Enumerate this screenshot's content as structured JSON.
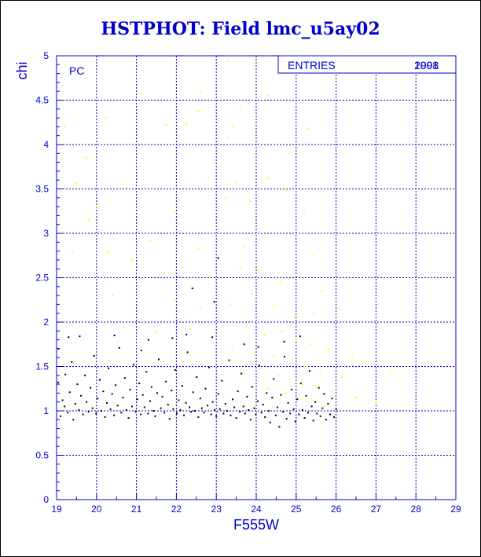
{
  "chart_data": {
    "type": "scatter",
    "title": "HSTPHOT: Field lmc_u5ay02",
    "xlabel": "F555W",
    "ylabel": "chi",
    "xlim": [
      19,
      29
    ],
    "ylim": [
      0,
      5
    ],
    "x_ticks": [
      "19",
      "20",
      "21",
      "22",
      "23",
      "24",
      "25",
      "26",
      "27",
      "28",
      "29"
    ],
    "y_ticks": [
      "0",
      "0.5",
      "1",
      "1.5",
      "2",
      "2.5",
      "3",
      "3.5",
      "4",
      "4.5",
      "5"
    ],
    "grid": true,
    "panel_label": "PC",
    "stats_box": {
      "label": "ENTRIES",
      "values": [
        "2098",
        "1901"
      ]
    },
    "colors": {
      "frame": "#0000cc",
      "title": "#0000cc",
      "points_good": "#000000",
      "points_flagged": "#ffff00"
    },
    "series": [
      {
        "color_key": "points_good",
        "points": [
          [
            19.04,
            1.32
          ],
          [
            19.1,
            0.94
          ],
          [
            19.15,
            1.12
          ],
          [
            19.2,
            1.05
          ],
          [
            19.22,
            1.41
          ],
          [
            19.28,
            0.98
          ],
          [
            19.33,
            1.21
          ],
          [
            19.38,
            1.55
          ],
          [
            19.42,
            0.9
          ],
          [
            19.47,
            1.08
          ],
          [
            19.52,
            1.3
          ],
          [
            19.56,
            1.01
          ],
          [
            19.61,
            1.17
          ],
          [
            19.66,
            0.96
          ],
          [
            19.71,
            1.4
          ],
          [
            19.75,
            1.1
          ],
          [
            19.8,
            0.99
          ],
          [
            19.85,
            1.26
          ],
          [
            19.9,
            1.03
          ],
          [
            19.94,
            1.62
          ],
          [
            19.99,
            0.97
          ],
          [
            20.03,
            1.14
          ],
          [
            20.08,
            1.35
          ],
          [
            20.12,
            1.0
          ],
          [
            20.17,
            1.22
          ],
          [
            20.21,
            0.93
          ],
          [
            20.26,
            1.09
          ],
          [
            20.3,
            1.48
          ],
          [
            20.35,
            1.02
          ],
          [
            20.39,
            1.19
          ],
          [
            20.44,
            0.95
          ],
          [
            20.48,
            1.29
          ],
          [
            20.53,
            1.06
          ],
          [
            20.57,
            1.71
          ],
          [
            20.62,
            0.98
          ],
          [
            20.66,
            1.15
          ],
          [
            20.71,
            1.37
          ],
          [
            20.75,
            1.01
          ],
          [
            20.8,
            0.92
          ],
          [
            20.84,
            1.24
          ],
          [
            20.89,
            1.05
          ],
          [
            20.93,
            1.52
          ],
          [
            20.98,
            0.99
          ],
          [
            21.02,
            1.13
          ],
          [
            21.07,
            1.31
          ],
          [
            21.11,
            0.96
          ],
          [
            21.16,
            1.18
          ],
          [
            21.2,
            1.04
          ],
          [
            21.25,
            1.44
          ],
          [
            21.29,
            0.97
          ],
          [
            21.34,
            1.11
          ],
          [
            21.38,
            1.27
          ],
          [
            21.43,
            1.0
          ],
          [
            21.47,
            0.94
          ],
          [
            21.52,
            1.2
          ],
          [
            21.56,
            1.58
          ],
          [
            21.61,
            1.03
          ],
          [
            21.65,
            1.16
          ],
          [
            21.7,
            0.98
          ],
          [
            21.74,
            1.33
          ],
          [
            21.79,
            1.07
          ],
          [
            21.83,
            0.91
          ],
          [
            21.88,
            1.23
          ],
          [
            21.92,
            1.02
          ],
          [
            21.97,
            1.46
          ],
          [
            22.01,
            0.97
          ],
          [
            22.06,
            1.12
          ],
          [
            22.1,
            1.01
          ],
          [
            22.15,
            1.28
          ],
          [
            22.19,
            0.95
          ],
          [
            22.24,
            1.09
          ],
          [
            22.28,
            1.66
          ],
          [
            22.33,
            1.04
          ],
          [
            22.37,
            0.99
          ],
          [
            22.42,
            1.21
          ],
          [
            22.46,
            1.0
          ],
          [
            22.51,
            1.38
          ],
          [
            22.55,
            0.93
          ],
          [
            22.6,
            1.14
          ],
          [
            22.64,
            1.03
          ],
          [
            22.69,
            0.98
          ],
          [
            22.73,
            1.25
          ],
          [
            22.78,
            1.06
          ],
          [
            22.82,
            1.49
          ],
          [
            22.87,
            0.96
          ],
          [
            22.91,
            1.1
          ],
          [
            22.96,
            1.01
          ],
          [
            23.0,
            0.94
          ],
          [
            23.05,
            1.19
          ],
          [
            23.09,
            1.02
          ],
          [
            23.14,
            1.34
          ],
          [
            23.18,
            0.97
          ],
          [
            23.23,
            1.08
          ],
          [
            23.27,
            1.0
          ],
          [
            23.32,
            1.57
          ],
          [
            23.36,
            0.95
          ],
          [
            23.41,
            1.13
          ],
          [
            23.45,
            1.04
          ],
          [
            23.5,
            0.92
          ],
          [
            23.54,
            1.22
          ],
          [
            23.59,
            0.99
          ],
          [
            23.63,
            1.42
          ],
          [
            23.68,
            1.05
          ],
          [
            23.72,
            0.97
          ],
          [
            23.77,
            1.16
          ],
          [
            23.81,
            1.01
          ],
          [
            23.86,
            0.9
          ],
          [
            23.9,
            1.27
          ],
          [
            23.95,
            1.03
          ],
          [
            23.99,
            0.96
          ],
          [
            24.04,
            1.11
          ],
          [
            24.08,
            1.51
          ],
          [
            24.13,
            0.98
          ],
          [
            24.17,
            1.07
          ],
          [
            24.22,
            0.93
          ],
          [
            24.26,
            1.2
          ],
          [
            24.31,
            1.0
          ],
          [
            24.35,
            0.87
          ],
          [
            24.4,
            1.15
          ],
          [
            24.44,
            1.36
          ],
          [
            24.49,
            0.95
          ],
          [
            24.53,
            1.04
          ],
          [
            24.58,
            0.82
          ],
          [
            24.62,
            1.18
          ],
          [
            24.67,
            0.99
          ],
          [
            24.71,
            1.61
          ],
          [
            24.76,
            0.91
          ],
          [
            24.8,
            1.09
          ],
          [
            24.85,
            0.97
          ],
          [
            24.89,
            1.24
          ],
          [
            24.94,
            1.02
          ],
          [
            24.98,
            0.88
          ],
          [
            25.03,
            1.13
          ],
          [
            25.07,
            0.96
          ],
          [
            25.12,
            1.31
          ],
          [
            25.16,
            1.01
          ],
          [
            25.21,
            0.92
          ],
          [
            25.25,
            1.17
          ],
          [
            25.3,
            0.98
          ],
          [
            25.34,
            1.45
          ],
          [
            25.39,
            1.05
          ],
          [
            25.43,
            0.89
          ],
          [
            25.48,
            1.1
          ],
          [
            25.52,
            0.97
          ],
          [
            25.57,
            1.26
          ],
          [
            25.61,
            0.94
          ],
          [
            25.66,
            1.03
          ],
          [
            25.7,
            1.19
          ],
          [
            25.75,
            0.9
          ],
          [
            25.8,
            1.08
          ],
          [
            25.85,
            0.96
          ],
          [
            25.9,
            1.14
          ],
          [
            25.95,
            0.93
          ],
          [
            26.0,
            1.02
          ],
          [
            19.3,
            1.83
          ],
          [
            19.58,
            1.84
          ],
          [
            20.45,
            1.85
          ],
          [
            21.3,
            1.8
          ],
          [
            21.9,
            1.82
          ],
          [
            22.25,
            1.86
          ],
          [
            22.9,
            1.83
          ],
          [
            24.05,
            1.72
          ],
          [
            24.7,
            1.78
          ],
          [
            25.1,
            1.84
          ],
          [
            22.95,
            2.23
          ],
          [
            23.05,
            2.72
          ],
          [
            22.4,
            2.38
          ],
          [
            19.05,
            1.7
          ],
          [
            21.12,
            1.68
          ],
          [
            23.7,
            1.75
          ]
        ]
      },
      {
        "color_key": "points_flagged",
        "points": [
          [
            23.3,
            4.96
          ],
          [
            22.55,
            4.38
          ],
          [
            22.6,
            4.6
          ],
          [
            23.3,
            4.08
          ],
          [
            22.25,
            4.23
          ],
          [
            19.2,
            4.2
          ],
          [
            19.75,
            3.85
          ],
          [
            20.23,
            4.3
          ],
          [
            21.75,
            4.22
          ],
          [
            21.1,
            4.57
          ],
          [
            24.3,
            4.55
          ],
          [
            25.3,
            4.18
          ],
          [
            23.42,
            4.2
          ],
          [
            19.5,
            3.56
          ],
          [
            20.0,
            3.3
          ],
          [
            20.75,
            3.52
          ],
          [
            21.95,
            3.25
          ],
          [
            22.8,
            3.62
          ],
          [
            23.5,
            3.58
          ],
          [
            23.85,
            3.36
          ],
          [
            24.3,
            3.62
          ],
          [
            24.75,
            3.49
          ],
          [
            25.2,
            3.22
          ],
          [
            19.8,
            3.15
          ],
          [
            20.3,
            2.78
          ],
          [
            21.35,
            2.92
          ],
          [
            22.55,
            2.82
          ],
          [
            23.05,
            3.05
          ],
          [
            23.7,
            2.85
          ],
          [
            24.25,
            2.95
          ],
          [
            25.4,
            2.75
          ],
          [
            19.4,
            2.8
          ],
          [
            20.9,
            2.7
          ],
          [
            21.7,
            2.55
          ],
          [
            22.15,
            2.62
          ],
          [
            22.85,
            2.52
          ],
          [
            23.6,
            2.62
          ],
          [
            24.05,
            2.58
          ],
          [
            24.6,
            2.45
          ],
          [
            25.1,
            2.52
          ],
          [
            25.65,
            2.35
          ],
          [
            20.4,
            2.3
          ],
          [
            21.05,
            2.1
          ],
          [
            21.95,
            2.25
          ],
          [
            22.6,
            2.15
          ],
          [
            23.35,
            2.2
          ],
          [
            23.9,
            2.32
          ],
          [
            24.45,
            2.18
          ],
          [
            24.95,
            2.05
          ],
          [
            25.45,
            2.1
          ],
          [
            26.05,
            2.15
          ],
          [
            27.05,
            2.2
          ],
          [
            20.7,
            1.95
          ],
          [
            21.5,
            1.88
          ],
          [
            22.35,
            1.92
          ],
          [
            23.15,
            1.9
          ],
          [
            23.75,
            1.95
          ],
          [
            24.2,
            1.85
          ],
          [
            24.65,
            1.9
          ],
          [
            25.0,
            1.8
          ],
          [
            25.35,
            1.75
          ],
          [
            25.8,
            1.7
          ],
          [
            26.4,
            1.6
          ],
          [
            26.7,
            1.55
          ],
          [
            27.4,
            1.45
          ],
          [
            23.4,
            1.72
          ],
          [
            23.95,
            1.65
          ],
          [
            24.45,
            1.62
          ],
          [
            24.9,
            1.58
          ],
          [
            25.25,
            1.5
          ],
          [
            25.6,
            1.45
          ],
          [
            26.15,
            1.38
          ],
          [
            24.1,
            1.48
          ],
          [
            24.55,
            1.4
          ],
          [
            24.85,
            1.35
          ],
          [
            25.15,
            1.3
          ],
          [
            25.5,
            1.28
          ],
          [
            25.9,
            1.22
          ],
          [
            26.5,
            1.15
          ],
          [
            27.0,
            1.1
          ],
          [
            24.3,
            1.25
          ],
          [
            24.75,
            1.2
          ],
          [
            25.05,
            1.15
          ],
          [
            25.4,
            1.12
          ],
          [
            25.7,
            1.05
          ],
          [
            24.0,
            2.65
          ],
          [
            23.25,
            3.4
          ],
          [
            22.95,
            3.8
          ],
          [
            23.6,
            4.4
          ],
          [
            24.8,
            3.9
          ]
        ]
      }
    ]
  }
}
